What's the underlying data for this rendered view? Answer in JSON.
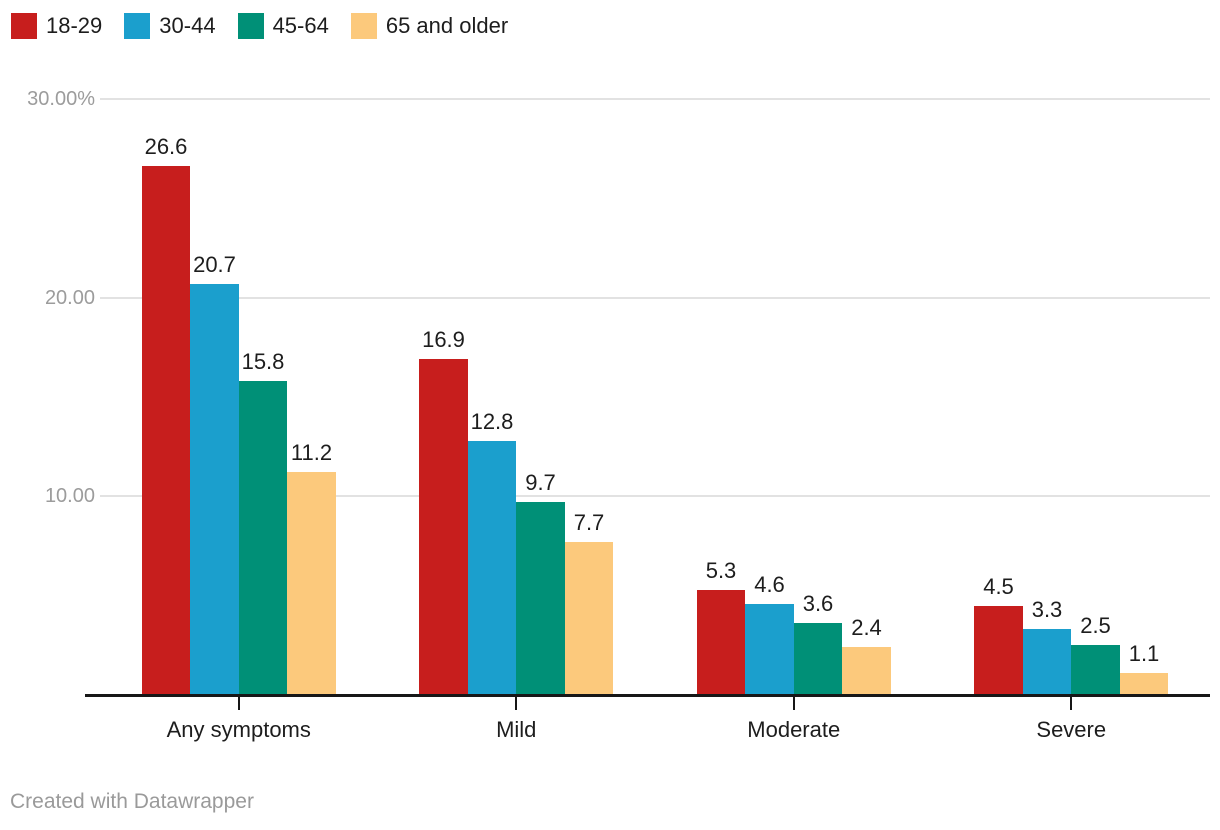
{
  "footer": {
    "attribution": "Created with Datawrapper"
  },
  "chart_data": {
    "type": "bar",
    "title": "",
    "categories": [
      "Any symptoms",
      "Mild",
      "Moderate",
      "Severe"
    ],
    "series": [
      {
        "name": "18-29",
        "color": "#c71e1d",
        "values": [
          26.6,
          16.9,
          5.3,
          4.5
        ]
      },
      {
        "name": "30-44",
        "color": "#1b9fcd",
        "values": [
          20.7,
          12.8,
          4.6,
          3.3
        ]
      },
      {
        "name": "45-64",
        "color": "#009077",
        "values": [
          15.8,
          9.7,
          3.6,
          2.5
        ]
      },
      {
        "name": "65 and older",
        "color": "#fcc97c",
        "values": [
          11.2,
          7.7,
          2.4,
          1.1
        ]
      }
    ],
    "value_labels": true,
    "yticks": [
      {
        "value": 30,
        "label": "30.00%"
      },
      {
        "value": 20,
        "label": "20.00"
      },
      {
        "value": 10,
        "label": "10.00"
      }
    ],
    "ylim": [
      0,
      30
    ],
    "xlabel": "",
    "ylabel": "",
    "grid": true,
    "legend_position": "top-left",
    "colors": {
      "axis_text": "#9c9c9c",
      "label_text": "#1d1d1d",
      "gridline": "#e2e2e2",
      "baseline": "#171717",
      "footer_text": "#9a9a9a"
    }
  }
}
